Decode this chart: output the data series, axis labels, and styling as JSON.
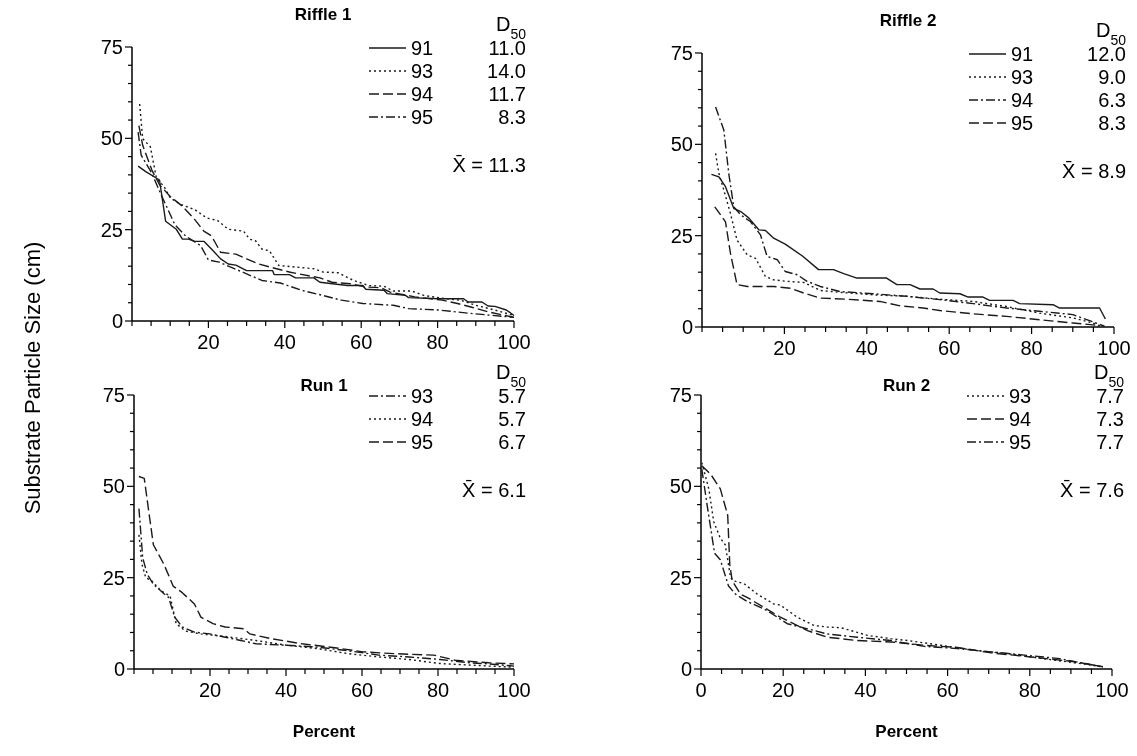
{
  "chart_data": [
    {
      "type": "line",
      "title": "Riffle 1",
      "ylabel": "Substrate Particle Size (cm)",
      "xlim": [
        0,
        100
      ],
      "ylim": [
        0,
        75
      ],
      "legend": "top right",
      "xticks": [
        {
          "value": 0,
          "label": null
        },
        {
          "value": 5,
          "label": null
        },
        {
          "value": 10,
          "label": null
        },
        {
          "value": 15,
          "label": null
        },
        20,
        {
          "value": 25,
          "label": null
        },
        {
          "value": 30,
          "label": null
        },
        {
          "value": 35,
          "label": null
        },
        40,
        {
          "value": 45,
          "label": null
        },
        {
          "value": 50,
          "label": null
        },
        {
          "value": 55,
          "label": null
        },
        60,
        {
          "value": 65,
          "label": null
        },
        {
          "value": 70,
          "label": null
        },
        {
          "value": 75,
          "label": null
        },
        80,
        {
          "value": 85,
          "label": null
        },
        {
          "value": 90,
          "label": null
        },
        {
          "value": 95,
          "label": null
        },
        100
      ],
      "yticks": [
        0,
        {
          "value": 5,
          "label": null
        },
        {
          "value": 10,
          "label": null
        },
        {
          "value": 15,
          "label": null
        },
        {
          "value": 20,
          "label": null
        },
        25,
        {
          "value": 30,
          "label": null
        },
        {
          "value": 35,
          "label": null
        },
        {
          "value": 40,
          "label": null
        },
        {
          "value": 45,
          "label": null
        },
        50,
        {
          "value": 55,
          "label": null
        },
        {
          "value": 60,
          "label": null
        },
        {
          "value": 65,
          "label": null
        },
        {
          "value": 70,
          "label": null
        },
        75
      ],
      "annotations": [
        "D$_{50}$",
        "11.0",
        "14.0",
        "11.7",
        "8.3",
        "X̄ = 11.3"
      ],
      "series": [
        {
          "name": "91",
          "color": "#1a1a1a",
          "line_style": "solid",
          "x": [
            1.6,
            3.6,
            7.2,
            8.8,
            11.6,
            13.2,
            14.8,
            16.4,
            18.8,
            20.8,
            23.2,
            25.2,
            27.2,
            30,
            36.8,
            37.2,
            41.2,
            42.8,
            47.6,
            49.2,
            56.4,
            60.4,
            61.2,
            66,
            66.8,
            71.6,
            72.4,
            80.4,
            86.8,
            88,
            91.6,
            93.2,
            95,
            98,
            100
          ],
          "values": [
            42.4,
            40.9,
            38.6,
            27.3,
            25.1,
            22.4,
            22.4,
            21.8,
            21.8,
            19.7,
            17,
            15.6,
            15.3,
            13.8,
            13.8,
            12.7,
            12.7,
            11.8,
            11.8,
            10.6,
            9.7,
            9.7,
            8.7,
            8.4,
            7.5,
            7,
            6.4,
            6.1,
            6.1,
            5.2,
            5.2,
            4.1,
            4,
            3,
            1.5
          ]
        },
        {
          "name": "93",
          "color": "#1a1a1a",
          "line_style": "dotted",
          "x": [
            2,
            2.8,
            4.8,
            6.4,
            8.4,
            10,
            12.8,
            16.4,
            19.6,
            22.4,
            25.2,
            29.2,
            30.8,
            32.4,
            34,
            36,
            38.4,
            47.6,
            50,
            54,
            58,
            62,
            66,
            68.4,
            73.2,
            76.4,
            82,
            86,
            90,
            95,
            100
          ],
          "values": [
            59.4,
            49.9,
            47.7,
            39.1,
            36.8,
            33.7,
            31.9,
            30.5,
            28.2,
            27.5,
            25.1,
            24.6,
            22.4,
            21.9,
            19.7,
            19.2,
            15.2,
            14.3,
            13.4,
            13.2,
            11.1,
            9.7,
            9.5,
            8.2,
            8.2,
            7,
            6.1,
            5.7,
            4.3,
            3,
            1.5
          ]
        },
        {
          "name": "94",
          "color": "#1a1a1a",
          "line_style": "dashed",
          "x": [
            1.8,
            2.8,
            5.2,
            7.2,
            10,
            13.2,
            16.4,
            18.8,
            20.8,
            23.2,
            27.2,
            30,
            33.2,
            36.4,
            41.2,
            49.2,
            52.4,
            57.2,
            61.2,
            65.2,
            67.6,
            74,
            81.2,
            85.2,
            89.2,
            93.2,
            100
          ],
          "values": [
            53.5,
            48.1,
            41.3,
            37.3,
            34.1,
            31.4,
            27.8,
            24.6,
            23.3,
            18.8,
            18.3,
            17,
            15.6,
            14.7,
            13.4,
            11.8,
            10.6,
            10.2,
            9.3,
            9.1,
            7.9,
            6.6,
            5.7,
            4.8,
            3.7,
            2.5,
            1
          ]
        },
        {
          "name": "95",
          "color": "#1a1a1a",
          "line_style": "dashdot",
          "x": [
            1.6,
            2.4,
            5.2,
            7.6,
            9.2,
            11.2,
            14,
            18,
            20,
            22.8,
            26,
            30,
            34,
            38.8,
            44.4,
            50,
            54.8,
            60.4,
            68.4,
            72.4,
            80.4,
            88.4,
            100
          ],
          "values": [
            51.7,
            45.4,
            40.4,
            34.6,
            31,
            26.4,
            23.3,
            20.6,
            16.7,
            16.1,
            14.7,
            12.9,
            11.1,
            10.4,
            8.4,
            7,
            5.7,
            4.8,
            4.3,
            3.4,
            3,
            2.1,
            1
          ]
        }
      ]
    },
    {
      "type": "line",
      "title": "Riffle 2",
      "xlim": [
        0,
        100
      ],
      "ylim": [
        0,
        75
      ],
      "legend": "top right",
      "xticks": [
        {
          "value": 0,
          "label": null
        },
        {
          "value": 5,
          "label": null
        },
        {
          "value": 10,
          "label": null
        },
        {
          "value": 15,
          "label": null
        },
        20,
        {
          "value": 25,
          "label": null
        },
        {
          "value": 30,
          "label": null
        },
        {
          "value": 35,
          "label": null
        },
        40,
        {
          "value": 45,
          "label": null
        },
        {
          "value": 50,
          "label": null
        },
        {
          "value": 55,
          "label": null
        },
        60,
        {
          "value": 65,
          "label": null
        },
        {
          "value": 70,
          "label": null
        },
        {
          "value": 75,
          "label": null
        },
        80,
        {
          "value": 85,
          "label": null
        },
        {
          "value": 90,
          "label": null
        },
        {
          "value": 95,
          "label": null
        },
        100
      ],
      "yticks": [
        0,
        {
          "value": 5,
          "label": null
        },
        {
          "value": 10,
          "label": null
        },
        {
          "value": 15,
          "label": null
        },
        {
          "value": 20,
          "label": null
        },
        25,
        {
          "value": 30,
          "label": null
        },
        {
          "value": 35,
          "label": null
        },
        {
          "value": 40,
          "label": null
        },
        {
          "value": 45,
          "label": null
        },
        50,
        {
          "value": 55,
          "label": null
        },
        {
          "value": 60,
          "label": null
        },
        {
          "value": 65,
          "label": null
        },
        {
          "value": 70,
          "label": null
        },
        75
      ],
      "annotations": [
        "D$_{50}$",
        "12.0",
        "9.0",
        "6.3",
        "8.3",
        "X̄ = 8.9"
      ],
      "series": [
        {
          "name": "91",
          "color": "#1a1a1a",
          "line_style": "solid",
          "x": [
            2.3,
            4.1,
            5.7,
            7.7,
            9.4,
            11.4,
            13.8,
            15.4,
            17.4,
            20.2,
            24.3,
            28.3,
            31.9,
            34.4,
            37.6,
            44.8,
            47.3,
            50.5,
            52.9,
            56.1,
            57.7,
            62.6,
            64.6,
            68.2,
            69.8,
            75.5,
            77.1,
            85.2,
            86.8,
            96.5,
            97.9
          ],
          "values": [
            41.8,
            41.1,
            38.4,
            32.5,
            31.6,
            29.8,
            26.6,
            26.4,
            24.3,
            22.7,
            19.5,
            15.7,
            15.7,
            14.6,
            13.4,
            13.4,
            11.6,
            11.6,
            10.4,
            10.4,
            9.3,
            9.1,
            8.2,
            8.2,
            7.3,
            7.3,
            6.4,
            6.1,
            5.2,
            5.2,
            2.2
          ]
        },
        {
          "name": "93",
          "color": "#1a1a1a",
          "line_style": "dotted",
          "x": [
            3.3,
            4.1,
            5.3,
            6.9,
            8.5,
            11,
            13,
            15.4,
            17.4,
            20.6,
            24.7,
            28.7,
            33.5,
            41.6,
            49.7,
            57.7,
            65.8,
            73.9,
            81.9,
            90,
            94.8,
            97.3
          ],
          "values": [
            47.5,
            42,
            37.5,
            31.1,
            23.8,
            19.7,
            18.8,
            13.8,
            12.9,
            12.5,
            12.2,
            10,
            9.5,
            8.8,
            8.4,
            7.6,
            7,
            5.6,
            3.8,
            2.5,
            1.1,
            0
          ]
        },
        {
          "name": "94",
          "color": "#1a1a1a",
          "line_style": "dashdot",
          "x": [
            3.3,
            5.3,
            6.5,
            7.7,
            9.4,
            11.8,
            14.2,
            15.8,
            18.3,
            20.2,
            23.1,
            25.5,
            28.7,
            33.5,
            41.6,
            49.7,
            57.7,
            65.8,
            73.9,
            81.9,
            90,
            95.6,
            97.7
          ],
          "values": [
            60.2,
            53.9,
            42,
            32.9,
            30.7,
            28.8,
            25.2,
            19.3,
            18.4,
            15.2,
            14.3,
            12.5,
            11.1,
            9.7,
            9.1,
            8.4,
            7.5,
            6.4,
            5.2,
            4.3,
            3.4,
            1.1,
            0.2
          ]
        },
        {
          "name": "95",
          "color": "#1a1a1a",
          "line_style": "dashed",
          "x": [
            3.1,
            5.7,
            6.9,
            8.5,
            11,
            17.4,
            21.5,
            24.7,
            28.7,
            35.2,
            43.2,
            48.1,
            53.7,
            57.7,
            65.8,
            73.9,
            81.9,
            90,
            96.5
          ],
          "values": [
            32.9,
            28.8,
            20.2,
            11.6,
            11.1,
            11.1,
            10.6,
            9.3,
            7.9,
            7.6,
            7,
            5.8,
            5.2,
            4.5,
            3.6,
            2.9,
            2,
            1.1,
            0.4
          ]
        }
      ]
    },
    {
      "type": "line",
      "title": "Run 1",
      "xlabel": "Percent",
      "xlim": [
        0,
        100
      ],
      "ylim": [
        0,
        75
      ],
      "legend": "top right",
      "xticks": [
        {
          "value": 0,
          "label": null
        },
        {
          "value": 5,
          "label": null
        },
        {
          "value": 10,
          "label": null
        },
        {
          "value": 15,
          "label": null
        },
        20,
        {
          "value": 25,
          "label": null
        },
        {
          "value": 30,
          "label": null
        },
        {
          "value": 35,
          "label": null
        },
        40,
        {
          "value": 45,
          "label": null
        },
        {
          "value": 50,
          "label": null
        },
        {
          "value": 55,
          "label": null
        },
        60,
        {
          "value": 65,
          "label": null
        },
        {
          "value": 70,
          "label": null
        },
        {
          "value": 75,
          "label": null
        },
        80,
        {
          "value": 85,
          "label": null
        },
        {
          "value": 90,
          "label": null
        },
        {
          "value": 95,
          "label": null
        },
        100
      ],
      "yticks": [
        0,
        {
          "value": 5,
          "label": null
        },
        {
          "value": 10,
          "label": null
        },
        {
          "value": 15,
          "label": null
        },
        {
          "value": 20,
          "label": null
        },
        25,
        {
          "value": 30,
          "label": null
        },
        {
          "value": 35,
          "label": null
        },
        {
          "value": 40,
          "label": null
        },
        {
          "value": 45,
          "label": null
        },
        50,
        {
          "value": 55,
          "label": null
        },
        {
          "value": 60,
          "label": null
        },
        {
          "value": 65,
          "label": null
        },
        {
          "value": 70,
          "label": null
        },
        75
      ],
      "annotations": [
        "D$_{50}$",
        "5.7",
        "5.7",
        "6.7",
        "X̄ = 6.1"
      ],
      "series": [
        {
          "name": "93",
          "color": "#1a1a1a",
          "line_style": "dashdot",
          "x": [
            1.3,
            2.3,
            3.5,
            5.1,
            7.9,
            9.1,
            10.7,
            12.7,
            15.9,
            20,
            24,
            28.1,
            32.1,
            40.2,
            48.2,
            56.3,
            64.4,
            72.4,
            80.5,
            88.5,
            93.4,
            100
          ],
          "values": [
            43.9,
            30.4,
            25.9,
            23.2,
            20.6,
            19.6,
            14.2,
            11.5,
            10.1,
            9.6,
            8.7,
            7.8,
            6.9,
            6.5,
            6,
            5,
            3.8,
            3.3,
            2.6,
            1.7,
            1.4,
            0.8
          ]
        },
        {
          "name": "94",
          "color": "#1a1a1a",
          "line_style": "dotted",
          "x": [
            1.3,
            2.1,
            3.1,
            4.7,
            7.1,
            9.5,
            11.1,
            13.5,
            17.6,
            24,
            32.1,
            40.2,
            48.2,
            56.3,
            64.4,
            72.4,
            80.5,
            93.4,
            100
          ],
          "values": [
            36.7,
            28.6,
            25,
            24.1,
            21.4,
            20,
            12.4,
            10.4,
            9.6,
            8.9,
            7.8,
            6.5,
            5.6,
            4.2,
            3.3,
            2.6,
            1.5,
            0.8,
            0.5
          ]
        },
        {
          "name": "95",
          "color": "#1a1a1a",
          "line_style": "dashed",
          "x": [
            1.3,
            2.7,
            3.9,
            5.1,
            7.9,
            10.3,
            12.7,
            15.9,
            17.6,
            20.8,
            24,
            28.9,
            30.5,
            36.1,
            44.2,
            52.3,
            60.3,
            68.4,
            78.9,
            84.5,
            93.4,
            100
          ],
          "values": [
            52.7,
            52.2,
            43,
            34,
            28.6,
            22.7,
            20.9,
            17.8,
            14.2,
            12.4,
            11.5,
            11,
            9.6,
            8.3,
            6.9,
            5.9,
            4.7,
            4.2,
            3.8,
            2.4,
            1.7,
            1.4
          ]
        }
      ]
    },
    {
      "type": "line",
      "title": "Run 2",
      "xlabel": "Percent",
      "xlim": [
        0,
        100
      ],
      "ylim": [
        0,
        75
      ],
      "legend": "top right",
      "xticks": [
        0,
        {
          "value": 5,
          "label": null
        },
        {
          "value": 10,
          "label": null
        },
        {
          "value": 15,
          "label": null
        },
        20,
        {
          "value": 25,
          "label": null
        },
        {
          "value": 30,
          "label": null
        },
        {
          "value": 35,
          "label": null
        },
        40,
        {
          "value": 45,
          "label": null
        },
        {
          "value": 50,
          "label": null
        },
        {
          "value": 55,
          "label": null
        },
        60,
        {
          "value": 65,
          "label": null
        },
        {
          "value": 70,
          "label": null
        },
        {
          "value": 75,
          "label": null
        },
        80,
        {
          "value": 85,
          "label": null
        },
        {
          "value": 90,
          "label": null
        },
        {
          "value": 95,
          "label": null
        },
        100
      ],
      "yticks": [
        0,
        {
          "value": 5,
          "label": null
        },
        {
          "value": 10,
          "label": null
        },
        {
          "value": 15,
          "label": null
        },
        {
          "value": 20,
          "label": null
        },
        25,
        {
          "value": 30,
          "label": null
        },
        {
          "value": 35,
          "label": null
        },
        {
          "value": 40,
          "label": null
        },
        {
          "value": 45,
          "label": null
        },
        50,
        {
          "value": 55,
          "label": null
        },
        {
          "value": 60,
          "label": null
        },
        {
          "value": 65,
          "label": null
        },
        {
          "value": 70,
          "label": null
        },
        75
      ],
      "annotations": [
        "D$_{50}$",
        "7.7",
        "7.3",
        "7.7",
        "X̄ = 7.6"
      ],
      "series": [
        {
          "name": "93",
          "color": "#1a1a1a",
          "line_style": "dotted",
          "x": [
            0.2,
            1.9,
            3.1,
            4.7,
            5.9,
            7.2,
            8,
            10.4,
            13.7,
            17.7,
            19.3,
            23.4,
            27.5,
            30.7,
            34,
            37.8,
            40.5,
            46.2,
            50.2,
            58.4,
            66.5,
            74.6,
            82.8,
            90.9,
            97.8
          ],
          "values": [
            56.5,
            49.3,
            40.3,
            35.8,
            34,
            25,
            24.1,
            23.4,
            20.5,
            17.8,
            17.5,
            14.2,
            11.9,
            11.5,
            11.3,
            10.1,
            9.2,
            8.3,
            7.8,
            6.5,
            5.1,
            4.2,
            2.9,
            1.7,
            0.6
          ]
        },
        {
          "name": "94",
          "color": "#1a1a1a",
          "line_style": "dashed",
          "x": [
            0.2,
            2.3,
            4.7,
            6.5,
            7,
            7.6,
            9.6,
            11.2,
            15.3,
            19.3,
            25.9,
            30.7,
            38,
            46.2,
            54.3,
            62.4,
            70.6,
            80.3,
            90.9,
            97.8
          ],
          "values": [
            55.6,
            53.4,
            49.3,
            42.1,
            28.6,
            24.1,
            20.5,
            19.6,
            16.9,
            14.2,
            10.5,
            8.7,
            7.8,
            7.4,
            6.5,
            5.9,
            4.4,
            3.3,
            2,
            0.6
          ]
        },
        {
          "name": "95",
          "color": "#1a1a1a",
          "line_style": "dashdot",
          "x": [
            0.2,
            1.5,
            3.3,
            4.7,
            6.7,
            8.4,
            11.2,
            16.1,
            21,
            25.9,
            30.7,
            38,
            46.2,
            54.3,
            62.4,
            70.6,
            78.7,
            86.8,
            97.8
          ],
          "values": [
            54.7,
            44.8,
            31.7,
            29.9,
            22.7,
            20.5,
            18.5,
            16,
            12.4,
            11,
            9.6,
            8.7,
            7.8,
            6.2,
            5.6,
            4.7,
            3.8,
            2.9,
            0.6
          ]
        }
      ]
    }
  ]
}
